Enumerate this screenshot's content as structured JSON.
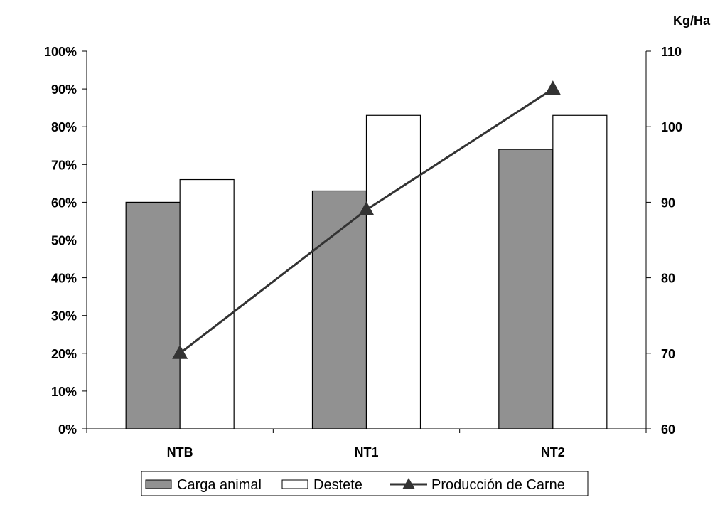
{
  "chart_data": {
    "type": "bar",
    "categories": [
      "NTB",
      "NT1",
      "NT2"
    ],
    "series": [
      {
        "name": "Carga animal",
        "type": "bar",
        "axis": "left",
        "values": [
          0.6,
          0.63,
          0.74
        ],
        "color": "#919191"
      },
      {
        "name": "Destete",
        "type": "bar",
        "axis": "left",
        "values": [
          0.66,
          0.83,
          0.83
        ],
        "color": "#ffffff"
      },
      {
        "name": "Producción de Carne",
        "type": "line",
        "axis": "right",
        "values": [
          70,
          89,
          105
        ],
        "color": "#333333",
        "marker": "triangle"
      }
    ],
    "y_left": {
      "ylim": [
        0,
        1
      ],
      "ticks": [
        "0%",
        "10%",
        "20%",
        "30%",
        "40%",
        "50%",
        "60%",
        "70%",
        "80%",
        "90%",
        "100%"
      ]
    },
    "y_right": {
      "label": "Kg/Ha",
      "ylim": [
        60,
        110
      ],
      "ticks": [
        "60",
        "70",
        "80",
        "90",
        "100",
        "110"
      ]
    },
    "grid": false,
    "legend": "bottom"
  }
}
